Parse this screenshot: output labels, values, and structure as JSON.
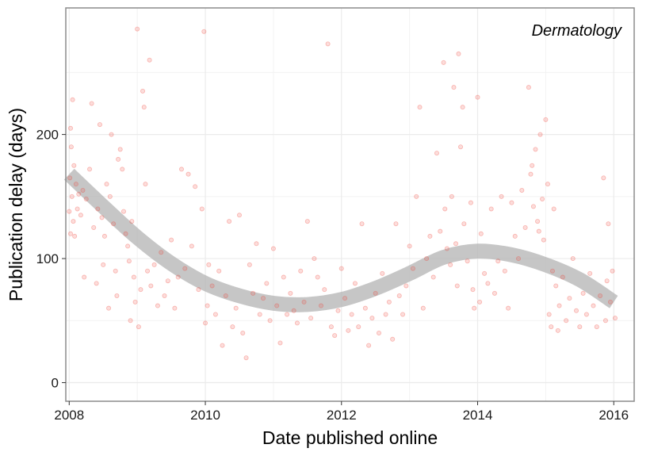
{
  "chart_data": {
    "type": "scatter",
    "panel_label": "Dermatology",
    "xlabel": "Date published online",
    "ylabel": "Publication delay (days)",
    "xlim": [
      2007.95,
      2016.3
    ],
    "ylim": [
      -15,
      302
    ],
    "x_ticks": [
      2008,
      2010,
      2012,
      2014,
      2016
    ],
    "y_ticks": [
      0,
      100,
      200
    ],
    "grid": true,
    "legend": "none",
    "colors": {
      "points": "#f0443a",
      "smooth": "#b3b3b3",
      "panel_border": "#8c8c8c"
    },
    "smooth_fit": {
      "x": [
        2008.0,
        2008.5,
        2009.0,
        2009.5,
        2010.0,
        2010.5,
        2011.0,
        2011.5,
        2012.0,
        2012.5,
        2013.0,
        2013.5,
        2014.0,
        2014.5,
        2015.0,
        2015.5,
        2016.0
      ],
      "y": [
        168,
        142,
        117,
        96,
        80,
        70,
        64,
        63,
        67,
        76,
        88,
        101,
        106,
        103,
        95,
        83,
        65
      ],
      "band_halfwidth": 6
    },
    "series": [
      {
        "points": [
          [
            2008.0,
            138
          ],
          [
            2008.01,
            165
          ],
          [
            2008.02,
            205
          ],
          [
            2008.02,
            120
          ],
          [
            2008.03,
            190
          ],
          [
            2008.04,
            150
          ],
          [
            2008.05,
            228
          ],
          [
            2008.06,
            130
          ],
          [
            2008.07,
            175
          ],
          [
            2008.08,
            118
          ],
          [
            2008.1,
            160
          ],
          [
            2008.12,
            140
          ],
          [
            2008.14,
            152
          ],
          [
            2008.17,
            135
          ],
          [
            2008.2,
            155
          ],
          [
            2008.22,
            85
          ],
          [
            2008.25,
            148
          ],
          [
            2008.3,
            172
          ],
          [
            2008.33,
            225
          ],
          [
            2008.36,
            125
          ],
          [
            2008.4,
            80
          ],
          [
            2008.42,
            140
          ],
          [
            2008.45,
            208
          ],
          [
            2008.48,
            133
          ],
          [
            2008.5,
            95
          ],
          [
            2008.52,
            118
          ],
          [
            2008.55,
            160
          ],
          [
            2008.58,
            60
          ],
          [
            2008.6,
            150
          ],
          [
            2008.62,
            200
          ],
          [
            2008.65,
            128
          ],
          [
            2008.68,
            90
          ],
          [
            2008.7,
            70
          ],
          [
            2008.72,
            180
          ],
          [
            2008.75,
            188
          ],
          [
            2008.78,
            172
          ],
          [
            2008.8,
            138
          ],
          [
            2008.83,
            120
          ],
          [
            2008.86,
            110
          ],
          [
            2008.88,
            98
          ],
          [
            2008.9,
            50
          ],
          [
            2008.92,
            130
          ],
          [
            2008.95,
            85
          ],
          [
            2008.97,
            65
          ],
          [
            2009.0,
            285
          ],
          [
            2009.02,
            45
          ],
          [
            2009.05,
            75
          ],
          [
            2009.08,
            235
          ],
          [
            2009.1,
            222
          ],
          [
            2009.12,
            160
          ],
          [
            2009.15,
            90
          ],
          [
            2009.18,
            260
          ],
          [
            2009.2,
            78
          ],
          [
            2009.25,
            95
          ],
          [
            2009.3,
            62
          ],
          [
            2009.35,
            105
          ],
          [
            2009.4,
            70
          ],
          [
            2009.45,
            82
          ],
          [
            2009.5,
            115
          ],
          [
            2009.55,
            60
          ],
          [
            2009.6,
            85
          ],
          [
            2009.65,
            172
          ],
          [
            2009.7,
            92
          ],
          [
            2009.75,
            168
          ],
          [
            2009.8,
            110
          ],
          [
            2009.85,
            158
          ],
          [
            2009.9,
            75
          ],
          [
            2009.95,
            140
          ],
          [
            2010.0,
            48
          ],
          [
            2010.03,
            62
          ],
          [
            2009.98,
            283
          ],
          [
            2010.05,
            95
          ],
          [
            2010.1,
            78
          ],
          [
            2010.15,
            55
          ],
          [
            2010.2,
            90
          ],
          [
            2010.25,
            30
          ],
          [
            2010.3,
            70
          ],
          [
            2010.35,
            130
          ],
          [
            2010.4,
            45
          ],
          [
            2010.45,
            60
          ],
          [
            2010.5,
            135
          ],
          [
            2010.55,
            40
          ],
          [
            2010.6,
            20
          ],
          [
            2010.65,
            95
          ],
          [
            2010.7,
            72
          ],
          [
            2010.75,
            112
          ],
          [
            2010.8,
            55
          ],
          [
            2010.85,
            68
          ],
          [
            2010.9,
            80
          ],
          [
            2010.95,
            50
          ],
          [
            2011.0,
            108
          ],
          [
            2011.05,
            62
          ],
          [
            2011.1,
            32
          ],
          [
            2011.15,
            85
          ],
          [
            2011.2,
            55
          ],
          [
            2011.25,
            72
          ],
          [
            2011.3,
            58
          ],
          [
            2011.35,
            48
          ],
          [
            2011.4,
            90
          ],
          [
            2011.45,
            65
          ],
          [
            2011.5,
            130
          ],
          [
            2011.55,
            52
          ],
          [
            2011.6,
            100
          ],
          [
            2011.65,
            85
          ],
          [
            2011.7,
            62
          ],
          [
            2011.75,
            75
          ],
          [
            2011.8,
            273
          ],
          [
            2011.85,
            45
          ],
          [
            2011.9,
            38
          ],
          [
            2011.95,
            58
          ],
          [
            2012.0,
            92
          ],
          [
            2012.05,
            68
          ],
          [
            2012.1,
            42
          ],
          [
            2012.15,
            55
          ],
          [
            2012.2,
            80
          ],
          [
            2012.25,
            45
          ],
          [
            2012.3,
            128
          ],
          [
            2012.35,
            60
          ],
          [
            2012.4,
            30
          ],
          [
            2012.45,
            52
          ],
          [
            2012.5,
            72
          ],
          [
            2012.55,
            40
          ],
          [
            2012.6,
            88
          ],
          [
            2012.65,
            55
          ],
          [
            2012.7,
            65
          ],
          [
            2012.75,
            35
          ],
          [
            2012.8,
            128
          ],
          [
            2012.85,
            70
          ],
          [
            2012.9,
            55
          ],
          [
            2012.95,
            78
          ],
          [
            2013.0,
            110
          ],
          [
            2013.05,
            92
          ],
          [
            2013.1,
            150
          ],
          [
            2013.15,
            222
          ],
          [
            2013.2,
            60
          ],
          [
            2013.25,
            100
          ],
          [
            2013.3,
            118
          ],
          [
            2013.35,
            85
          ],
          [
            2013.4,
            185
          ],
          [
            2013.45,
            122
          ],
          [
            2013.5,
            258
          ],
          [
            2013.52,
            140
          ],
          [
            2013.55,
            108
          ],
          [
            2013.6,
            95
          ],
          [
            2013.62,
            150
          ],
          [
            2013.65,
            238
          ],
          [
            2013.68,
            112
          ],
          [
            2013.7,
            78
          ],
          [
            2013.72,
            265
          ],
          [
            2013.75,
            190
          ],
          [
            2013.78,
            222
          ],
          [
            2013.8,
            128
          ],
          [
            2013.85,
            98
          ],
          [
            2013.9,
            145
          ],
          [
            2013.93,
            75
          ],
          [
            2013.95,
            60
          ],
          [
            2014.0,
            230
          ],
          [
            2014.03,
            65
          ],
          [
            2014.05,
            120
          ],
          [
            2014.1,
            88
          ],
          [
            2014.15,
            80
          ],
          [
            2014.2,
            140
          ],
          [
            2014.25,
            72
          ],
          [
            2014.3,
            98
          ],
          [
            2014.35,
            150
          ],
          [
            2014.4,
            90
          ],
          [
            2014.45,
            60
          ],
          [
            2014.5,
            145
          ],
          [
            2014.55,
            118
          ],
          [
            2014.6,
            100
          ],
          [
            2014.65,
            155
          ],
          [
            2014.7,
            125
          ],
          [
            2014.75,
            238
          ],
          [
            2014.78,
            168
          ],
          [
            2014.8,
            175
          ],
          [
            2014.82,
            142
          ],
          [
            2014.85,
            188
          ],
          [
            2014.88,
            130
          ],
          [
            2014.9,
            122
          ],
          [
            2014.92,
            200
          ],
          [
            2014.95,
            148
          ],
          [
            2014.97,
            115
          ],
          [
            2015.0,
            212
          ],
          [
            2015.03,
            160
          ],
          [
            2015.05,
            55
          ],
          [
            2015.08,
            45
          ],
          [
            2015.1,
            90
          ],
          [
            2015.12,
            140
          ],
          [
            2015.15,
            78
          ],
          [
            2015.18,
            42
          ],
          [
            2015.2,
            62
          ],
          [
            2015.25,
            85
          ],
          [
            2015.3,
            50
          ],
          [
            2015.35,
            68
          ],
          [
            2015.4,
            100
          ],
          [
            2015.45,
            58
          ],
          [
            2015.5,
            45
          ],
          [
            2015.55,
            72
          ],
          [
            2015.6,
            55
          ],
          [
            2015.65,
            88
          ],
          [
            2015.7,
            62
          ],
          [
            2015.75,
            45
          ],
          [
            2015.8,
            70
          ],
          [
            2015.85,
            165
          ],
          [
            2015.88,
            50
          ],
          [
            2015.9,
            82
          ],
          [
            2015.92,
            128
          ],
          [
            2015.95,
            65
          ],
          [
            2015.98,
            90
          ],
          [
            2016.02,
            52
          ]
        ]
      }
    ]
  }
}
